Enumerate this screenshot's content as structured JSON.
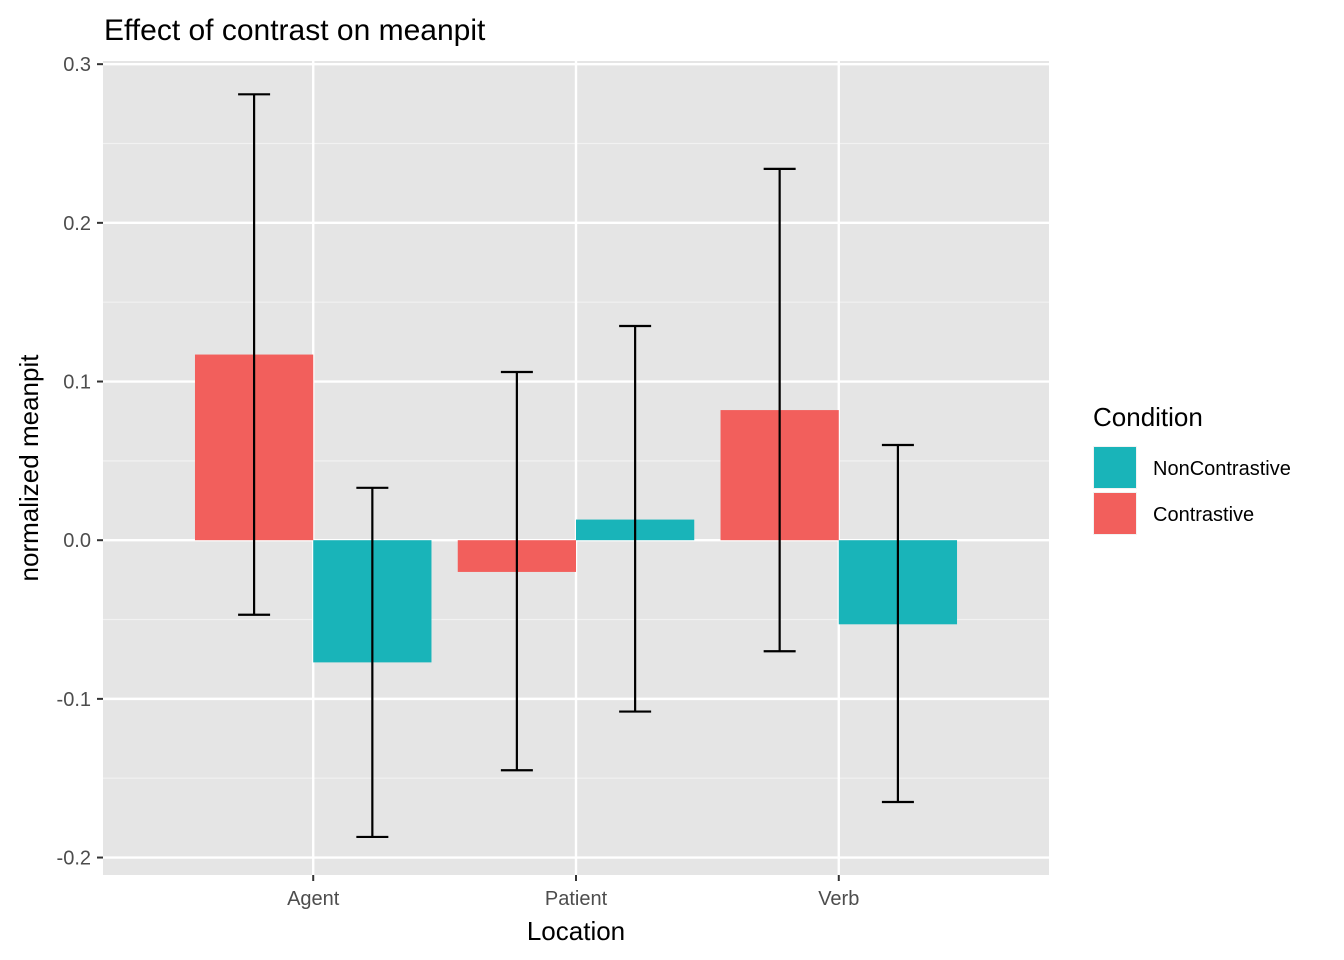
{
  "chart_data": {
    "type": "bar",
    "title": "Effect of contrast on meanpit",
    "xlabel": "Location",
    "ylabel": "normalized meanpit",
    "categories": [
      "Agent",
      "Patient",
      "Verb"
    ],
    "ylim": [
      -0.211,
      0.302
    ],
    "yticks": [
      -0.2,
      -0.1,
      0.0,
      0.1,
      0.2,
      0.3
    ],
    "ytick_labels": [
      "-0.2",
      "-0.1",
      "0.0",
      "0.1",
      "0.2",
      "0.3"
    ],
    "grid": true,
    "legend": {
      "title": "Condition",
      "position": "right",
      "items": [
        {
          "label": "NonContrastive",
          "color": "#19B4B9"
        },
        {
          "label": "Contrastive",
          "color": "#F25F5C"
        }
      ]
    },
    "series": [
      {
        "name": "Contrastive",
        "color": "#F25F5C",
        "values": [
          0.117,
          -0.02,
          0.082
        ],
        "error_low": [
          -0.047,
          -0.145,
          -0.07
        ],
        "error_high": [
          0.281,
          0.106,
          0.234
        ]
      },
      {
        "name": "NonContrastive",
        "color": "#19B4B9",
        "values": [
          -0.077,
          0.013,
          -0.053
        ],
        "error_low": [
          -0.187,
          -0.108,
          -0.165
        ],
        "error_high": [
          0.033,
          0.135,
          0.06
        ]
      }
    ]
  }
}
